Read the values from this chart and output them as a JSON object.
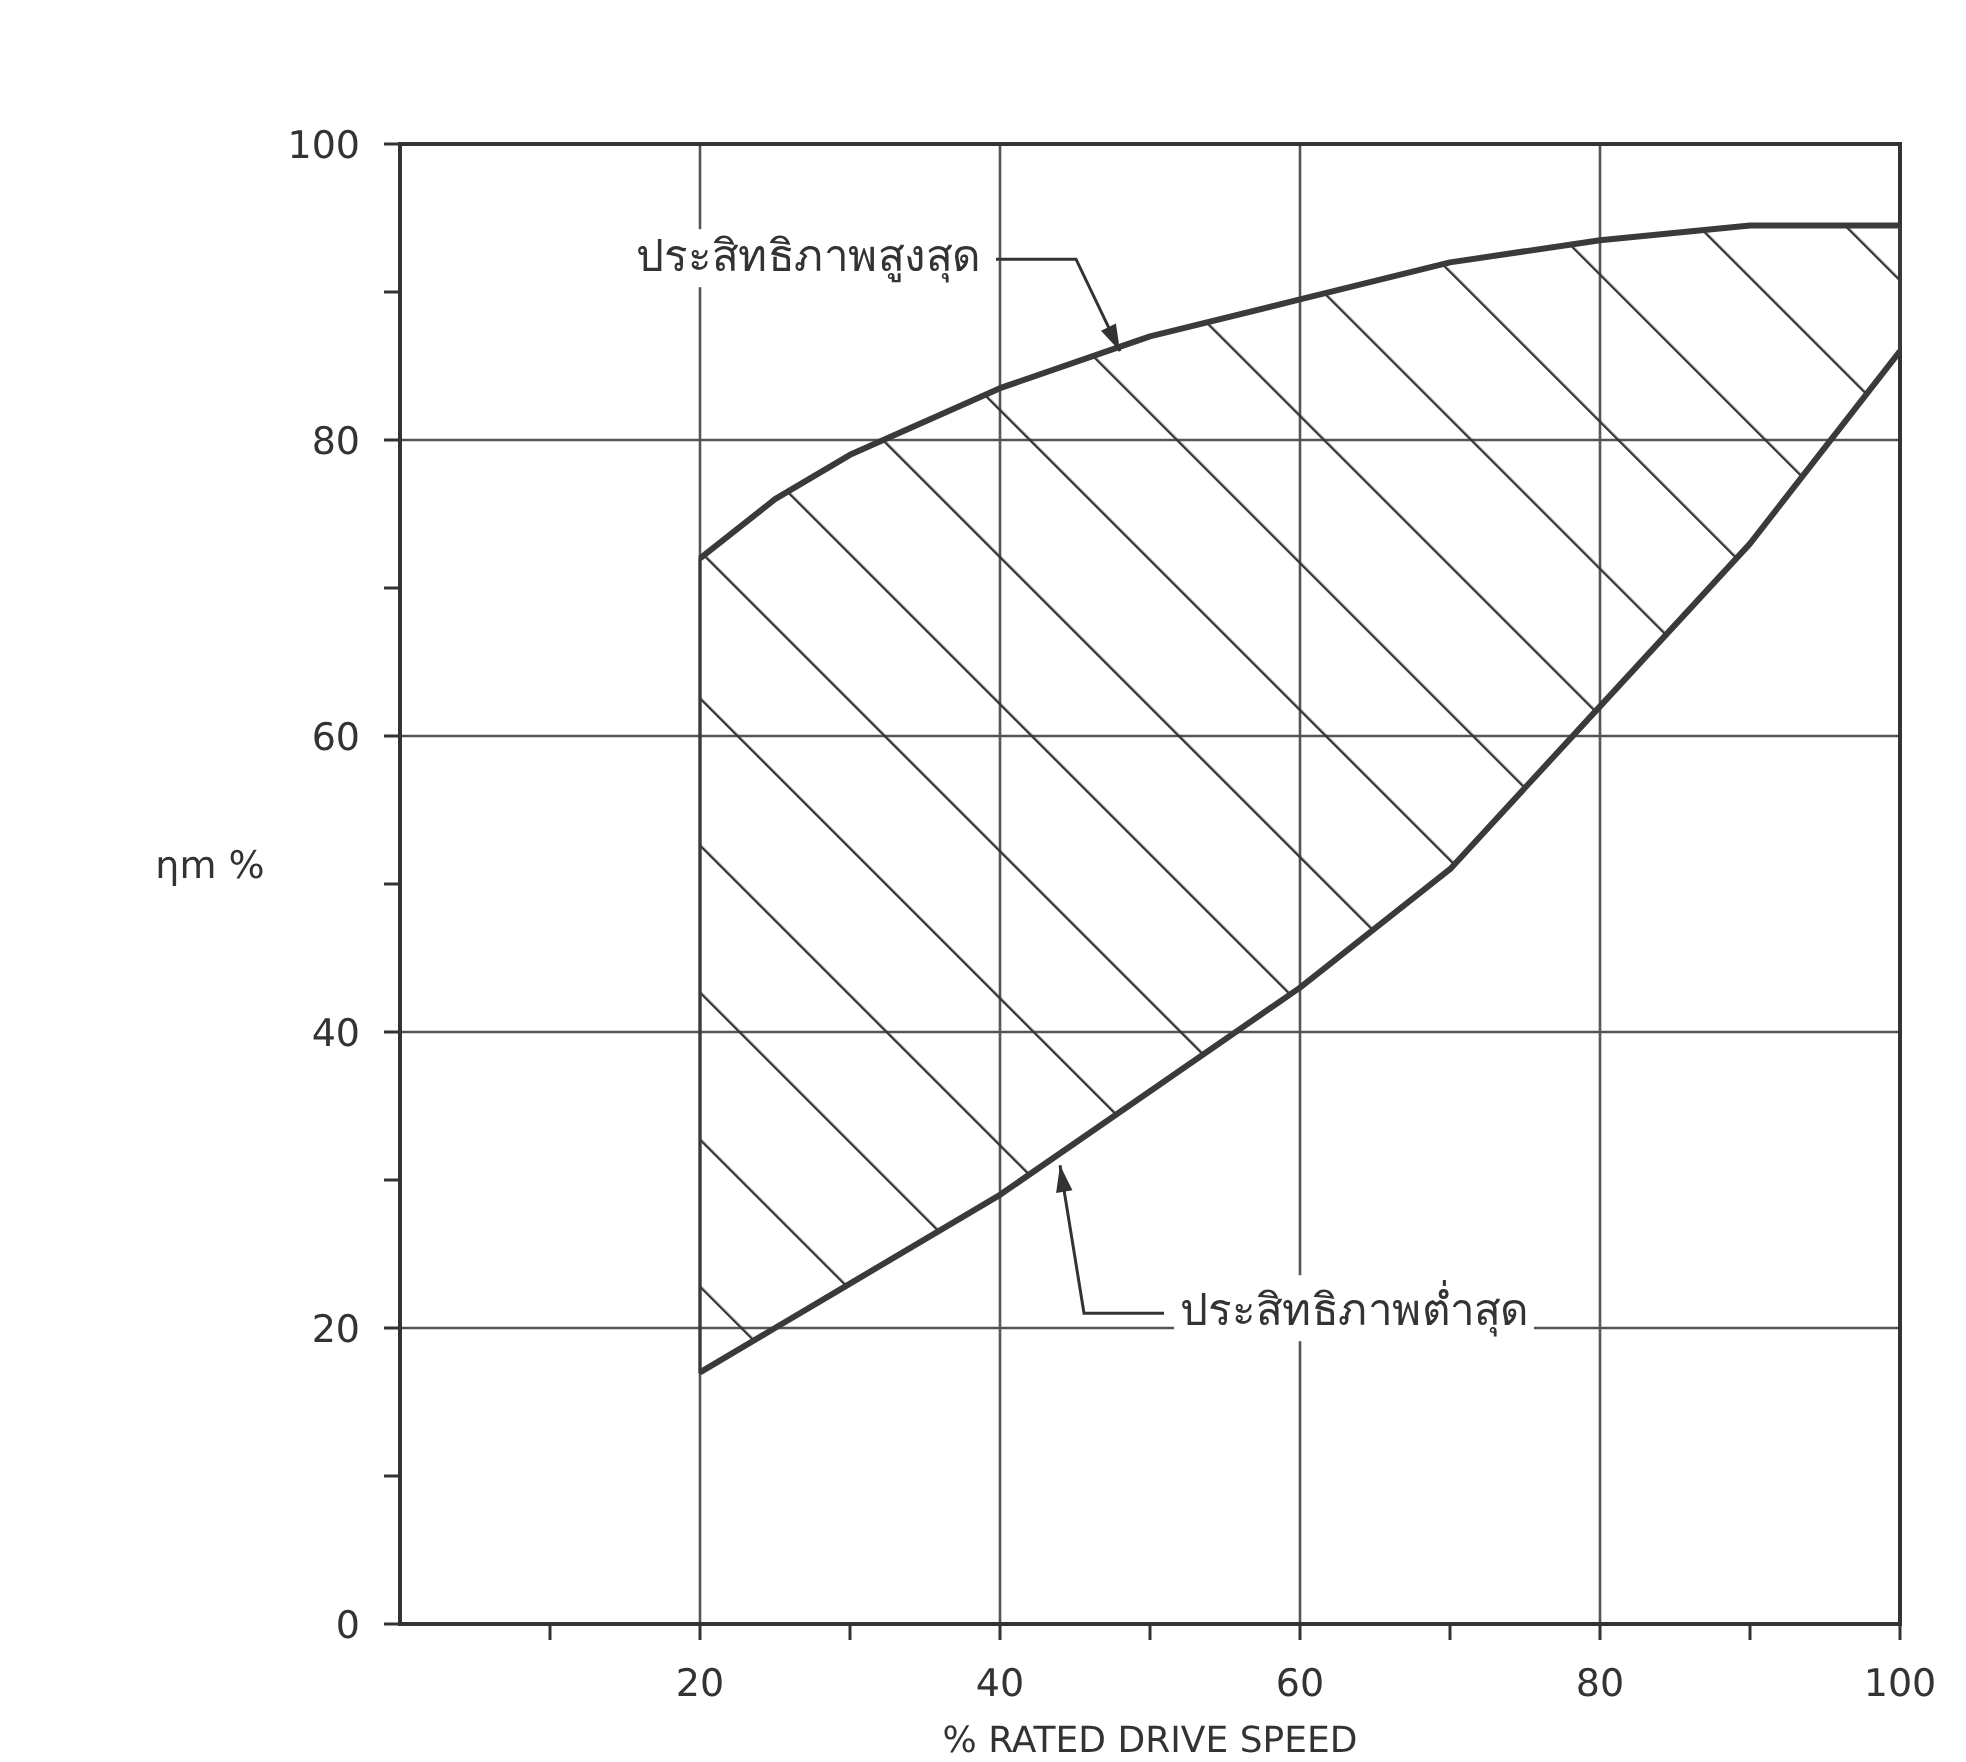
{
  "chart_data": {
    "type": "line",
    "xlabel": "% RATED DRIVE SPEED",
    "ylabel": "ηm %",
    "x": [
      20,
      25,
      30,
      40,
      50,
      60,
      70,
      80,
      90,
      100
    ],
    "series": [
      {
        "color": "#3a3a3a",
        "values": [
          72,
          76,
          79,
          83.5,
          87,
          89.5,
          92,
          93.5,
          94.5,
          94.5
        ],
        "lower": [
          17,
          20,
          23,
          29,
          36,
          43,
          51,
          62,
          73,
          86
        ],
        "upper": [
          72,
          76,
          79,
          83.5,
          87,
          89.5,
          92,
          93.5,
          94.5,
          94.5
        ]
      },
      {
        "color": "#3a3a3a",
        "values": [
          17,
          20,
          23,
          29,
          36,
          43,
          51,
          62,
          73,
          86
        ]
      }
    ],
    "annotations": [
      {
        "text": "ประสิทธิภาพสูงสุด",
        "x": 48,
        "y": 86
      },
      {
        "text": "ประสิทธิภาพต่ำสุด",
        "x": 44,
        "y": 31
      }
    ],
    "xlim": [
      0,
      100
    ],
    "ylim": [
      0,
      100
    ],
    "xticks": [
      {
        "value": 10,
        "label": null
      },
      20,
      {
        "value": 30,
        "label": null
      },
      40,
      {
        "value": 50,
        "label": null
      },
      60,
      {
        "value": 70,
        "label": null
      },
      80,
      {
        "value": 90,
        "label": null
      },
      100
    ],
    "yticks": [
      0,
      {
        "value": 10,
        "label": null
      },
      20,
      {
        "value": 30,
        "label": null
      },
      40,
      {
        "value": 50,
        "label": null
      },
      60,
      {
        "value": 70,
        "label": null
      },
      80,
      {
        "value": 90,
        "label": null
      },
      100
    ],
    "grid": true,
    "marker": "none",
    "line_style": "solid"
  }
}
